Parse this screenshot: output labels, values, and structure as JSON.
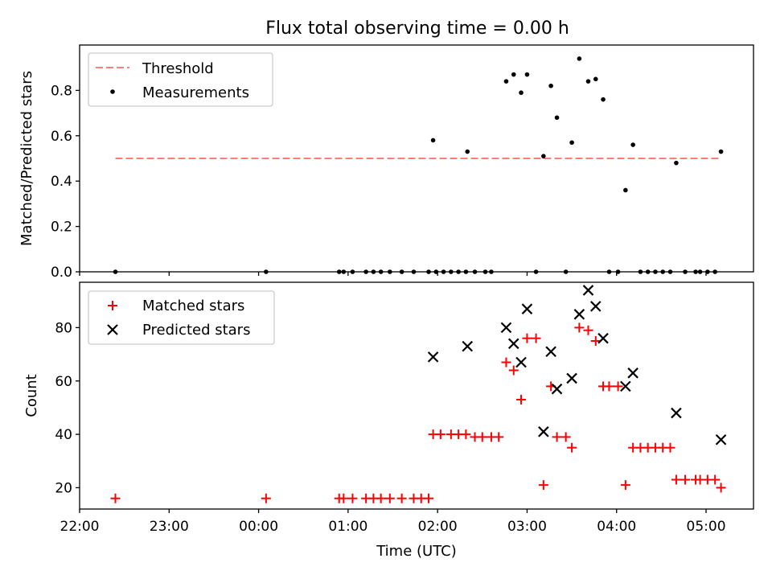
{
  "title": "Flux total observing time = 0.00 h",
  "colors": {
    "threshold": "#ff7f7f",
    "measurement": "#000000",
    "matched": "#ff0000",
    "predicted": "#000000",
    "axes": "#000000"
  },
  "chart_data": [
    {
      "type": "scatter",
      "ylabel": "Matched/Predicted stars",
      "ylim": [
        0,
        1.0
      ],
      "yticks": [
        0.0,
        0.2,
        0.4,
        0.6,
        0.8
      ],
      "ytick_labels": [
        "0.0",
        "0.2",
        "0.4",
        "0.6",
        "0.8"
      ],
      "x_range_hours": [
        22.0,
        29.53
      ],
      "legend": {
        "position": "top-left",
        "items": [
          {
            "label": "Threshold",
            "marker": "dashed-line"
          },
          {
            "label": "Measurements",
            "marker": "dot"
          }
        ]
      },
      "threshold": {
        "value": 0.5,
        "x_from": "22:24",
        "x_to": "05:09"
      },
      "series": [
        {
          "name": "Measurements",
          "points": [
            {
              "x": "22:24",
              "y": 0.0
            },
            {
              "x": "00:05",
              "y": 0.0
            },
            {
              "x": "00:54",
              "y": 0.0
            },
            {
              "x": "00:57",
              "y": 0.0
            },
            {
              "x": "01:03",
              "y": 0.0
            },
            {
              "x": "01:12",
              "y": 0.0
            },
            {
              "x": "01:17",
              "y": 0.0
            },
            {
              "x": "01:22",
              "y": 0.0
            },
            {
              "x": "01:28",
              "y": 0.0
            },
            {
              "x": "01:36",
              "y": 0.0
            },
            {
              "x": "01:44",
              "y": 0.0
            },
            {
              "x": "01:54",
              "y": 0.0
            },
            {
              "x": "01:59",
              "y": 0.0
            },
            {
              "x": "02:04",
              "y": 0.0
            },
            {
              "x": "02:09",
              "y": 0.0
            },
            {
              "x": "02:14",
              "y": 0.0
            },
            {
              "x": "02:19",
              "y": 0.0
            },
            {
              "x": "02:25",
              "y": 0.0
            },
            {
              "x": "02:32",
              "y": 0.0
            },
            {
              "x": "02:36",
              "y": 0.0
            },
            {
              "x": "01:57",
              "y": 0.58
            },
            {
              "x": "02:20",
              "y": 0.53
            },
            {
              "x": "02:46",
              "y": 0.84
            },
            {
              "x": "02:51",
              "y": 0.87
            },
            {
              "x": "02:56",
              "y": 0.79
            },
            {
              "x": "03:00",
              "y": 0.87
            },
            {
              "x": "03:06",
              "y": 0.0
            },
            {
              "x": "03:11",
              "y": 0.51
            },
            {
              "x": "03:16",
              "y": 0.82
            },
            {
              "x": "03:20",
              "y": 0.68
            },
            {
              "x": "03:26",
              "y": 0.0
            },
            {
              "x": "03:30",
              "y": 0.57
            },
            {
              "x": "03:35",
              "y": 0.94
            },
            {
              "x": "03:41",
              "y": 0.84
            },
            {
              "x": "03:46",
              "y": 0.85
            },
            {
              "x": "03:51",
              "y": 0.76
            },
            {
              "x": "03:55",
              "y": 0.0
            },
            {
              "x": "04:01",
              "y": 0.0
            },
            {
              "x": "04:06",
              "y": 0.36
            },
            {
              "x": "04:11",
              "y": 0.56
            },
            {
              "x": "04:16",
              "y": 0.0
            },
            {
              "x": "04:21",
              "y": 0.0
            },
            {
              "x": "04:26",
              "y": 0.0
            },
            {
              "x": "04:31",
              "y": 0.0
            },
            {
              "x": "04:36",
              "y": 0.0
            },
            {
              "x": "04:40",
              "y": 0.48
            },
            {
              "x": "04:46",
              "y": 0.0
            },
            {
              "x": "04:53",
              "y": 0.0
            },
            {
              "x": "04:56",
              "y": 0.0
            },
            {
              "x": "05:01",
              "y": 0.0
            },
            {
              "x": "05:06",
              "y": 0.0
            },
            {
              "x": "05:10",
              "y": 0.53
            }
          ]
        }
      ]
    },
    {
      "type": "scatter",
      "xlabel": "Time (UTC)",
      "ylabel": "Count",
      "ylim": [
        12,
        97
      ],
      "yticks": [
        20,
        40,
        60,
        80
      ],
      "ytick_labels": [
        "20",
        "40",
        "60",
        "80"
      ],
      "x_range_hours": [
        22.0,
        29.53
      ],
      "xticks": [
        22,
        23,
        24,
        25,
        26,
        27,
        28,
        29
      ],
      "xtick_labels": [
        "22:00",
        "23:00",
        "00:00",
        "01:00",
        "02:00",
        "03:00",
        "04:00",
        "05:00"
      ],
      "legend": {
        "position": "top-left",
        "items": [
          {
            "label": "Matched stars",
            "marker": "plus"
          },
          {
            "label": "Predicted stars",
            "marker": "x"
          }
        ]
      },
      "series": [
        {
          "name": "Matched stars",
          "marker": "plus",
          "points": [
            {
              "x": "22:24",
              "y": 16
            },
            {
              "x": "00:05",
              "y": 16
            },
            {
              "x": "00:54",
              "y": 16
            },
            {
              "x": "00:57",
              "y": 16
            },
            {
              "x": "01:03",
              "y": 16
            },
            {
              "x": "01:12",
              "y": 16
            },
            {
              "x": "01:17",
              "y": 16
            },
            {
              "x": "01:22",
              "y": 16
            },
            {
              "x": "01:28",
              "y": 16
            },
            {
              "x": "01:36",
              "y": 16
            },
            {
              "x": "01:44",
              "y": 16
            },
            {
              "x": "01:49",
              "y": 16
            },
            {
              "x": "01:54",
              "y": 16
            },
            {
              "x": "01:57",
              "y": 40
            },
            {
              "x": "02:02",
              "y": 40
            },
            {
              "x": "02:09",
              "y": 40
            },
            {
              "x": "02:14",
              "y": 40
            },
            {
              "x": "02:19",
              "y": 40
            },
            {
              "x": "02:25",
              "y": 39
            },
            {
              "x": "02:30",
              "y": 39
            },
            {
              "x": "02:36",
              "y": 39
            },
            {
              "x": "02:41",
              "y": 39
            },
            {
              "x": "02:46",
              "y": 67
            },
            {
              "x": "02:51",
              "y": 64
            },
            {
              "x": "02:56",
              "y": 53
            },
            {
              "x": "03:00",
              "y": 76
            },
            {
              "x": "03:06",
              "y": 76
            },
            {
              "x": "03:11",
              "y": 21
            },
            {
              "x": "03:16",
              "y": 58
            },
            {
              "x": "03:20",
              "y": 39
            },
            {
              "x": "03:26",
              "y": 39
            },
            {
              "x": "03:30",
              "y": 35
            },
            {
              "x": "03:35",
              "y": 80
            },
            {
              "x": "03:41",
              "y": 79
            },
            {
              "x": "03:46",
              "y": 75
            },
            {
              "x": "03:51",
              "y": 58
            },
            {
              "x": "03:55",
              "y": 58
            },
            {
              "x": "04:01",
              "y": 58
            },
            {
              "x": "04:06",
              "y": 21
            },
            {
              "x": "04:11",
              "y": 35
            },
            {
              "x": "04:16",
              "y": 35
            },
            {
              "x": "04:21",
              "y": 35
            },
            {
              "x": "04:26",
              "y": 35
            },
            {
              "x": "04:31",
              "y": 35
            },
            {
              "x": "04:36",
              "y": 35
            },
            {
              "x": "04:40",
              "y": 23
            },
            {
              "x": "04:46",
              "y": 23
            },
            {
              "x": "04:53",
              "y": 23
            },
            {
              "x": "04:56",
              "y": 23
            },
            {
              "x": "05:01",
              "y": 23
            },
            {
              "x": "05:06",
              "y": 23
            },
            {
              "x": "05:10",
              "y": 20
            }
          ]
        },
        {
          "name": "Predicted stars",
          "marker": "x",
          "points": [
            {
              "x": "01:57",
              "y": 69
            },
            {
              "x": "02:20",
              "y": 73
            },
            {
              "x": "02:46",
              "y": 80
            },
            {
              "x": "02:51",
              "y": 74
            },
            {
              "x": "02:56",
              "y": 67
            },
            {
              "x": "03:00",
              "y": 87
            },
            {
              "x": "03:11",
              "y": 41
            },
            {
              "x": "03:16",
              "y": 71
            },
            {
              "x": "03:20",
              "y": 57
            },
            {
              "x": "03:30",
              "y": 61
            },
            {
              "x": "03:35",
              "y": 85
            },
            {
              "x": "03:41",
              "y": 94
            },
            {
              "x": "03:46",
              "y": 88
            },
            {
              "x": "03:51",
              "y": 76
            },
            {
              "x": "04:06",
              "y": 58
            },
            {
              "x": "04:11",
              "y": 63
            },
            {
              "x": "04:40",
              "y": 48
            },
            {
              "x": "05:10",
              "y": 38
            }
          ]
        }
      ]
    }
  ]
}
